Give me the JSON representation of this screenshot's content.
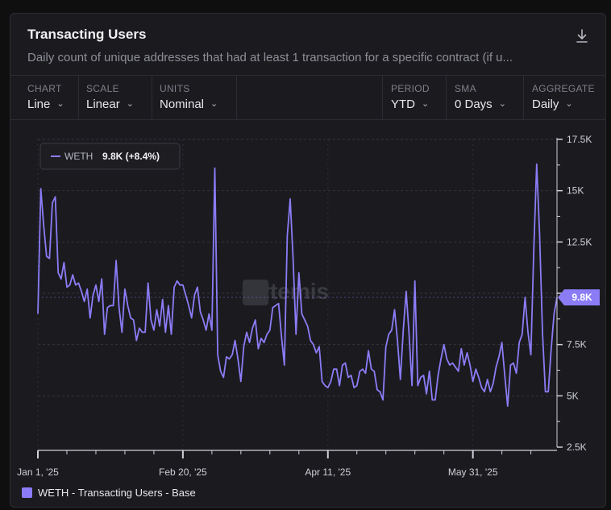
{
  "widget": {
    "title": "Transacting Users",
    "subtitle": "Daily count of unique addresses that had at least 1 transaction for a specific contract (if u...",
    "download_icon": "download-icon"
  },
  "controls": {
    "chart": {
      "label": "CHART",
      "value": "Line"
    },
    "scale": {
      "label": "SCALE",
      "value": "Linear"
    },
    "units": {
      "label": "UNITS",
      "value": "Nominal"
    },
    "period": {
      "label": "PERIOD",
      "value": "YTD"
    },
    "sma": {
      "label": "SMA",
      "value": "0 Days"
    },
    "aggregate": {
      "label": "AGGREGATE",
      "value": "Daily"
    }
  },
  "tooltip": {
    "series": "WETH",
    "value": "9.8K (+8.4%)"
  },
  "watermark": "Artemis",
  "last_value_badge": "9.8K",
  "colors": {
    "series": "#8b7cf6",
    "background": "#1b1b1f",
    "grid": "#3a3a44",
    "text": "#e8e8ec"
  },
  "legend": {
    "label": "WETH - Transacting Users - Base"
  },
  "chart_data": {
    "type": "line",
    "x_start": "Jan 1, '25",
    "x_ticks": [
      "Jan 1, '25",
      "Feb 20, '25",
      "Apr 11, '25",
      "May 31, '25"
    ],
    "y_ticks": [
      "2.5K",
      "5K",
      "7.5K",
      "10K",
      "12.5K",
      "15K",
      "17.5K"
    ],
    "ylim": [
      2500,
      17500
    ],
    "grid": true,
    "y_axis_side": "right",
    "series": [
      {
        "name": "WETH - Transacting Users - Base",
        "values": [
          9000,
          15100,
          13300,
          11800,
          11700,
          14400,
          14700,
          11000,
          10700,
          11500,
          10300,
          10400,
          10900,
          10400,
          10500,
          10100,
          9600,
          10200,
          8800,
          9900,
          10400,
          9600,
          10700,
          8000,
          9300,
          9400,
          9400,
          11600,
          9300,
          8100,
          10200,
          9400,
          8800,
          8700,
          7700,
          8300,
          8100,
          8100,
          10500,
          8700,
          8200,
          9200,
          8400,
          9700,
          8100,
          9400,
          8000,
          10300,
          10600,
          10400,
          10400,
          9900,
          9400,
          8800,
          9900,
          10300,
          9100,
          8700,
          8200,
          9000,
          8200,
          16100,
          7000,
          6200,
          5900,
          6900,
          6800,
          7000,
          7700,
          6800,
          5700,
          7400,
          8100,
          7600,
          8300,
          8700,
          7300,
          7800,
          7600,
          8000,
          8200,
          9300,
          9400,
          9500,
          7900,
          6500,
          12800,
          14600,
          11700,
          8000,
          11000,
          9000,
          8700,
          8400,
          7700,
          7500,
          7100,
          7400,
          5700,
          5500,
          5400,
          5700,
          6300,
          6300,
          5500,
          6500,
          6600,
          5900,
          6000,
          5400,
          5500,
          6200,
          6300,
          6100,
          7200,
          6300,
          6200,
          5300,
          5200,
          4800,
          7400,
          8000,
          8200,
          9200,
          7700,
          5800,
          8200,
          10100,
          8000,
          5500,
          10600,
          5500,
          5900,
          6000,
          5100,
          6200,
          4800,
          4800,
          6000,
          6800,
          7500,
          6800,
          6500,
          6600,
          6400,
          6200,
          7300,
          6500,
          7100,
          6500,
          5700,
          6300,
          5900,
          5400,
          5200,
          5800,
          5200,
          5600,
          6400,
          6900,
          7600,
          6000,
          4500,
          6500,
          6600,
          6100,
          7600,
          8000,
          9800,
          8100,
          7000,
          12100,
          16300,
          12900,
          8100,
          5200,
          5200,
          7300,
          9000,
          9800
        ]
      }
    ]
  }
}
